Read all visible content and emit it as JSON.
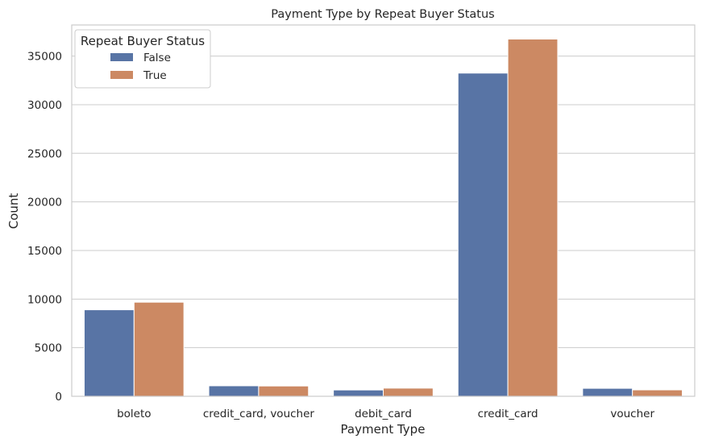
{
  "chart_data": {
    "type": "bar",
    "title": "Payment Type by Repeat Buyer Status",
    "xlabel": "Payment Type",
    "ylabel": "Count",
    "categories": [
      "boleto",
      "credit_card, voucher",
      "debit_card",
      "credit_card",
      "voucher"
    ],
    "series": [
      {
        "name": "False",
        "values": [
          8900,
          1080,
          650,
          33250,
          820
        ],
        "color": "#5874a5"
      },
      {
        "name": "True",
        "values": [
          9680,
          1060,
          840,
          36750,
          660
        ],
        "color": "#cc8963"
      }
    ],
    "ylim": [
      0,
      38200
    ],
    "yticks": [
      0,
      5000,
      10000,
      15000,
      20000,
      25000,
      30000,
      35000
    ],
    "grid": true,
    "legend": {
      "title": "Repeat Buyer Status",
      "placement": "top-left"
    }
  }
}
